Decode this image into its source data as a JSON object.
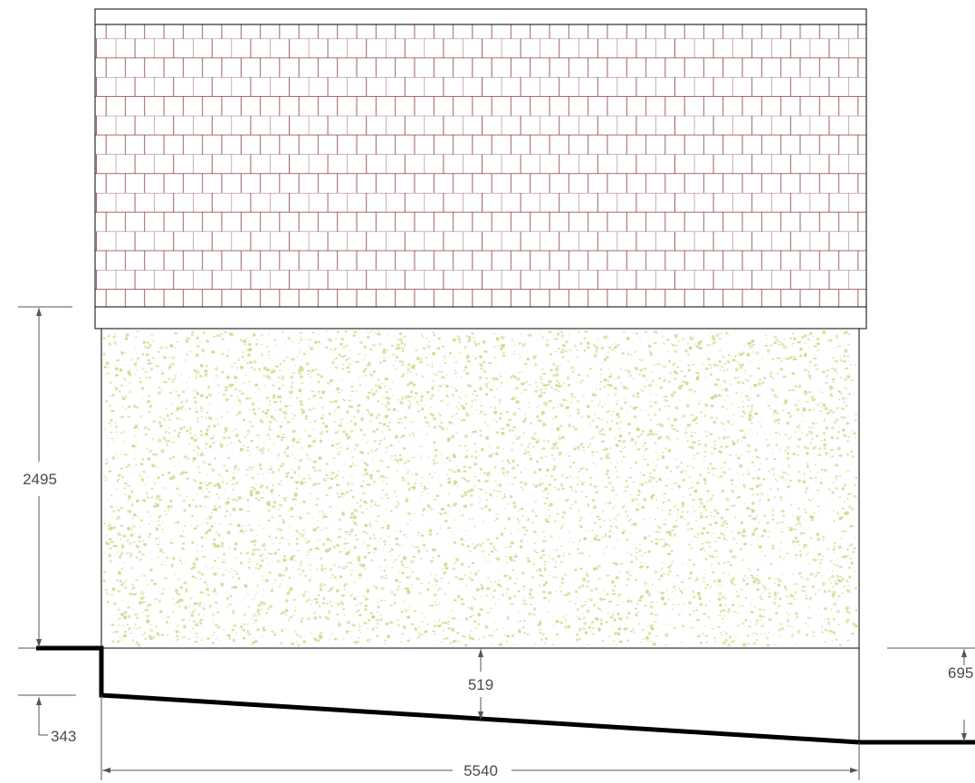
{
  "dimensions": {
    "wall_height": "2495",
    "step_height": "343",
    "gap_at_center": "519",
    "gap_at_right": "695",
    "wall_length": "5540"
  },
  "colors": {
    "tile_lines": "#8b3a3a",
    "render_speckle": "#d4d890",
    "outline": "#000000",
    "dimension": "#555555"
  }
}
